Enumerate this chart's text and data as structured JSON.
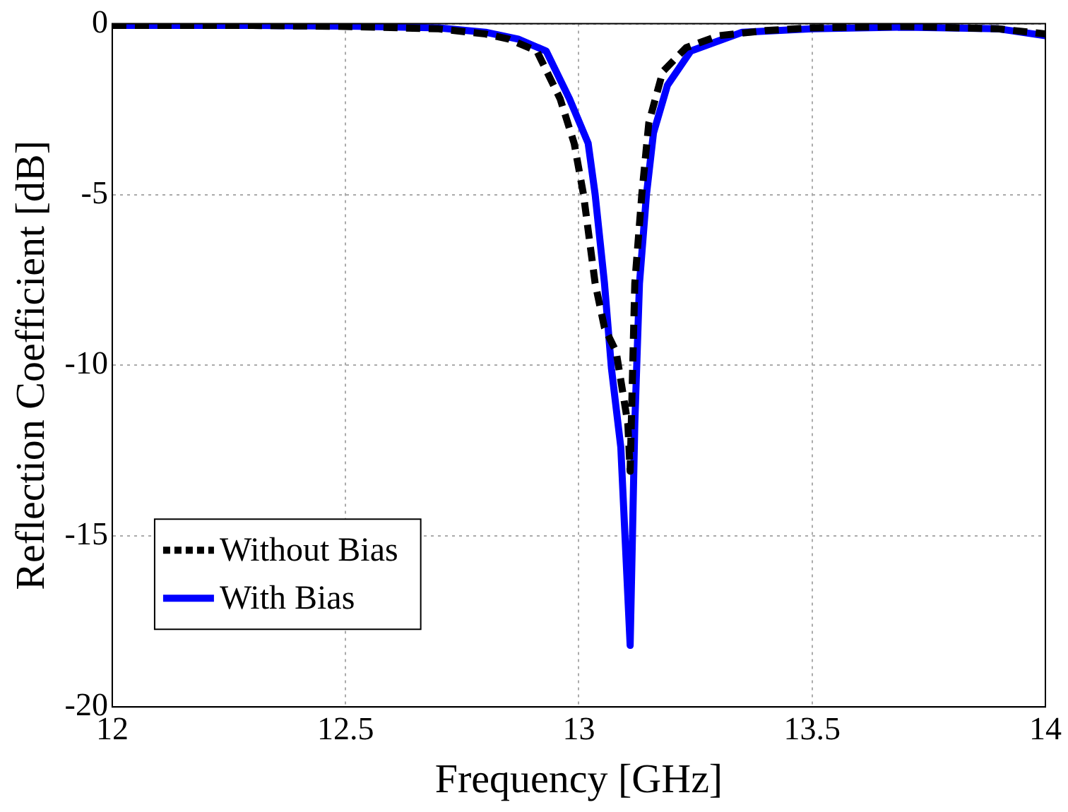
{
  "chart_data": {
    "type": "line",
    "xlabel": "Frequency [GHz]",
    "ylabel": "Reflection Coefficient [dB]",
    "xlim": [
      12,
      14
    ],
    "ylim": [
      -20,
      0
    ],
    "xticks": [
      12,
      12.5,
      13,
      13.5,
      14
    ],
    "yticks": [
      -20,
      -15,
      -10,
      -5,
      0
    ],
    "grid": true,
    "legend": "bottom left",
    "series": [
      {
        "name": "Without Bias",
        "color": "#000000",
        "line_style": "dashed",
        "x": [
          12,
          12.3,
          12.5,
          12.7,
          12.8,
          12.85,
          12.91,
          12.96,
          12.99,
          13.01,
          13.035,
          13.055,
          13.08,
          13.105,
          13.11,
          13.115,
          13.12,
          13.135,
          13.15,
          13.18,
          13.23,
          13.3,
          13.4,
          13.5,
          13.7,
          13.9,
          14
        ],
        "values": [
          -0.05,
          -0.05,
          -0.08,
          -0.15,
          -0.3,
          -0.45,
          -0.8,
          -2.2,
          -3.5,
          -5,
          -7.6,
          -8.9,
          -9.6,
          -11.7,
          -13.1,
          -10.3,
          -7.6,
          -5,
          -2.9,
          -1.4,
          -0.7,
          -0.35,
          -0.2,
          -0.12,
          -0.08,
          -0.15,
          -0.3
        ]
      },
      {
        "name": "With Bias",
        "color": "#0000ff",
        "line_style": "solid",
        "x": [
          12,
          12.3,
          12.5,
          12.7,
          12.8,
          12.87,
          12.93,
          12.98,
          13.02,
          13.035,
          13.055,
          13.07,
          13.09,
          13.11,
          13.12,
          13.13,
          13.145,
          13.16,
          13.19,
          13.24,
          13.35,
          13.5,
          13.7,
          13.9,
          14
        ],
        "values": [
          -0.05,
          -0.05,
          -0.07,
          -0.12,
          -0.25,
          -0.45,
          -0.8,
          -2.2,
          -3.5,
          -5,
          -7.6,
          -10.1,
          -12.4,
          -18.2,
          -11.7,
          -7.6,
          -5,
          -3.2,
          -1.8,
          -0.8,
          -0.25,
          -0.15,
          -0.1,
          -0.15,
          -0.35
        ]
      }
    ]
  }
}
